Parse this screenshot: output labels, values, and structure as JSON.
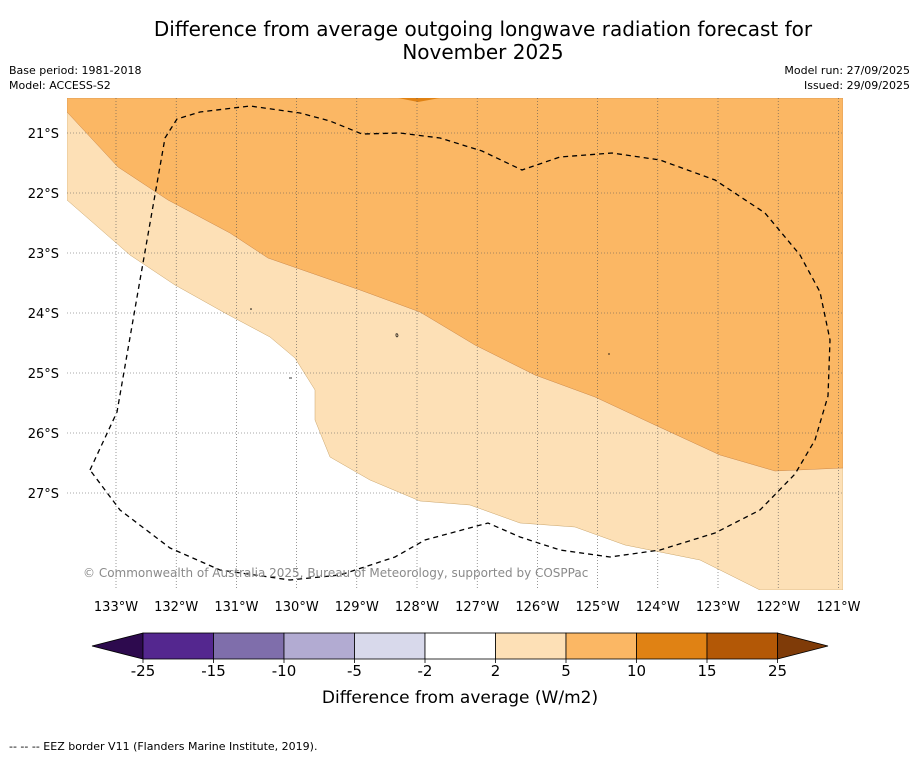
{
  "title_line1": "Difference from average outgoing longwave radiation forecast for",
  "title_line2": "November 2025",
  "meta": {
    "base_period": "Base period: 1981-2018",
    "model": "Model: ACCESS-S2",
    "model_run": "Model run: 27/09/2025",
    "issued": "Issued: 29/09/2025"
  },
  "map": {
    "latitude_labels": [
      "21°S",
      "22°S",
      "23°S",
      "24°S",
      "25°S",
      "26°S",
      "27°S"
    ],
    "longitude_labels": [
      "133°W",
      "132°W",
      "131°W",
      "130°W",
      "129°W",
      "128°W",
      "127°W",
      "126°W",
      "125°W",
      "124°W",
      "123°W",
      "122°W",
      "121°W"
    ],
    "copyright": "© Commonwealth of Australia 2025, Bureau of Meteorology, supported by COSPPac",
    "zone_colors": {
      "band_2_5": "#fde0b6",
      "band_5_10": "#fbb764",
      "band_m2_2": "#ffffff"
    }
  },
  "colorbar": {
    "title": "Difference from average (W/m2)",
    "tick_labels": [
      "-25",
      "-15",
      "-10",
      "-5",
      "-2",
      "2",
      "5",
      "10",
      "15",
      "25"
    ],
    "colors": [
      "#2d0a4e",
      "#54278f",
      "#7f6eab",
      "#b2abd2",
      "#d8d9eb",
      "#ffffff",
      "#fde0b6",
      "#fbb764",
      "#e08214",
      "#b35806",
      "#7f3b08"
    ]
  },
  "footer": "--  --  -- EEZ border V11 (Flanders Marine Institute, 2019)."
}
